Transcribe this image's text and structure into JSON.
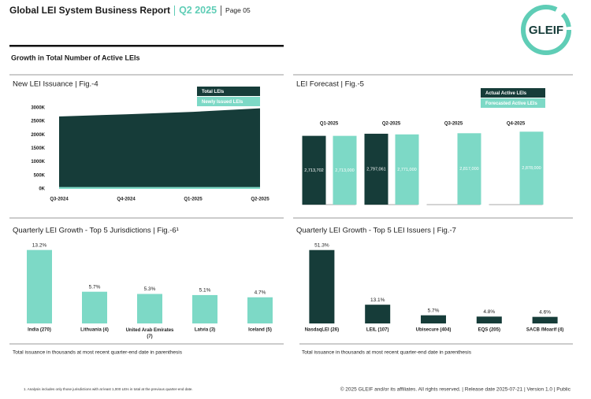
{
  "header": {
    "title": "Global LEI System Business Report",
    "quarter": "Q2 2025",
    "page": "Page 05"
  },
  "logo": "GLEIF",
  "section_title": "Growth in Total Number of Active LEIs",
  "chart_data": [
    {
      "type": "area",
      "title": "New LEI Issuance | Fig.-4",
      "categories": [
        "Q3-2024",
        "Q4-2024",
        "Q1-2025",
        "Q2-2025"
      ],
      "series": [
        {
          "name": "Total LEIs",
          "color": "#163c39",
          "values": [
            2680000,
            2760000,
            2850000,
            2980000
          ]
        },
        {
          "name": "Newly Issued LEIs",
          "color": "#7dd9c6",
          "values": [
            70000,
            70000,
            70000,
            70000
          ]
        }
      ],
      "ylim": [
        0,
        3000000
      ],
      "yticks": [
        {
          "value": 0,
          "label": "0K"
        },
        {
          "value": 500000,
          "label": "500K"
        },
        {
          "value": 1000000,
          "label": "1000K"
        },
        {
          "value": 1500000,
          "label": "1500K"
        },
        {
          "value": 2000000,
          "label": "2000K"
        },
        {
          "value": 2500000,
          "label": "2500K"
        },
        {
          "value": 3000000,
          "label": "3000K"
        }
      ]
    },
    {
      "type": "grouped_bar",
      "title": "LEI Forecast | Fig.-5",
      "categories": [
        "Q1-2025",
        "Q2-2025",
        "Q3-2025",
        "Q4-2025"
      ],
      "series": [
        {
          "name": "Actual Active LEIs",
          "color": "#163c39",
          "values": [
            2713702,
            2797061,
            null,
            null
          ],
          "value_labels": [
            "2,713,702",
            "2,797,061",
            null,
            null
          ]
        },
        {
          "name": "Forecasted Active LEIs",
          "color": "#7dd9c6",
          "values": [
            2713000,
            2771000,
            2817000,
            2878000
          ],
          "value_labels": [
            "2,713,000",
            "2,771,000",
            "2,817,000",
            "2,878,000"
          ]
        }
      ],
      "ylim": [
        0,
        2950000
      ]
    },
    {
      "type": "bar",
      "title": "Quarterly LEI Growth - Top 5 Jurisdictions | Fig.-6¹",
      "categories": [
        "India (270)",
        "Lithuania (4)",
        "United Arab Emirates (7)",
        "Latvia (3)",
        "Iceland (5)"
      ],
      "values": [
        13.2,
        5.7,
        5.3,
        5.1,
        4.7
      ],
      "value_labels": [
        "13.2%",
        "5.7%",
        "5.3%",
        "5.1%",
        "4.7%"
      ],
      "color": "#7dd9c6",
      "ylim": [
        0,
        14
      ],
      "note": "Total issuance in thousands at most recent quarter-end date in parenthesis"
    },
    {
      "type": "bar",
      "title": "Quarterly LEI Growth - Top 5 LEI Issuers | Fig.-7",
      "categories": [
        "NasdaqLEI (26)",
        "LEIL (107)",
        "Ubisecure (404)",
        "EQS (205)",
        "SACB /Moarif (4)"
      ],
      "values": [
        51.3,
        13.1,
        5.7,
        4.8,
        4.6
      ],
      "value_labels": [
        "51.3%",
        "13.1%",
        "5.7%",
        "4.8%",
        "4.6%"
      ],
      "color": "#163c39",
      "ylim": [
        0,
        55
      ],
      "note": "Total issuance in thousands at most recent quarter-end date in parenthesis"
    }
  ],
  "footnote": "1. Analysis includes only those jurisdictions with at least 1,000 LEIs in total at the previous quarter-end date.",
  "footer": "© 2025 GLEIF and/or its affiliates. All rights reserved. | Release date 2025-07-21 | Version 1.0 | Public"
}
